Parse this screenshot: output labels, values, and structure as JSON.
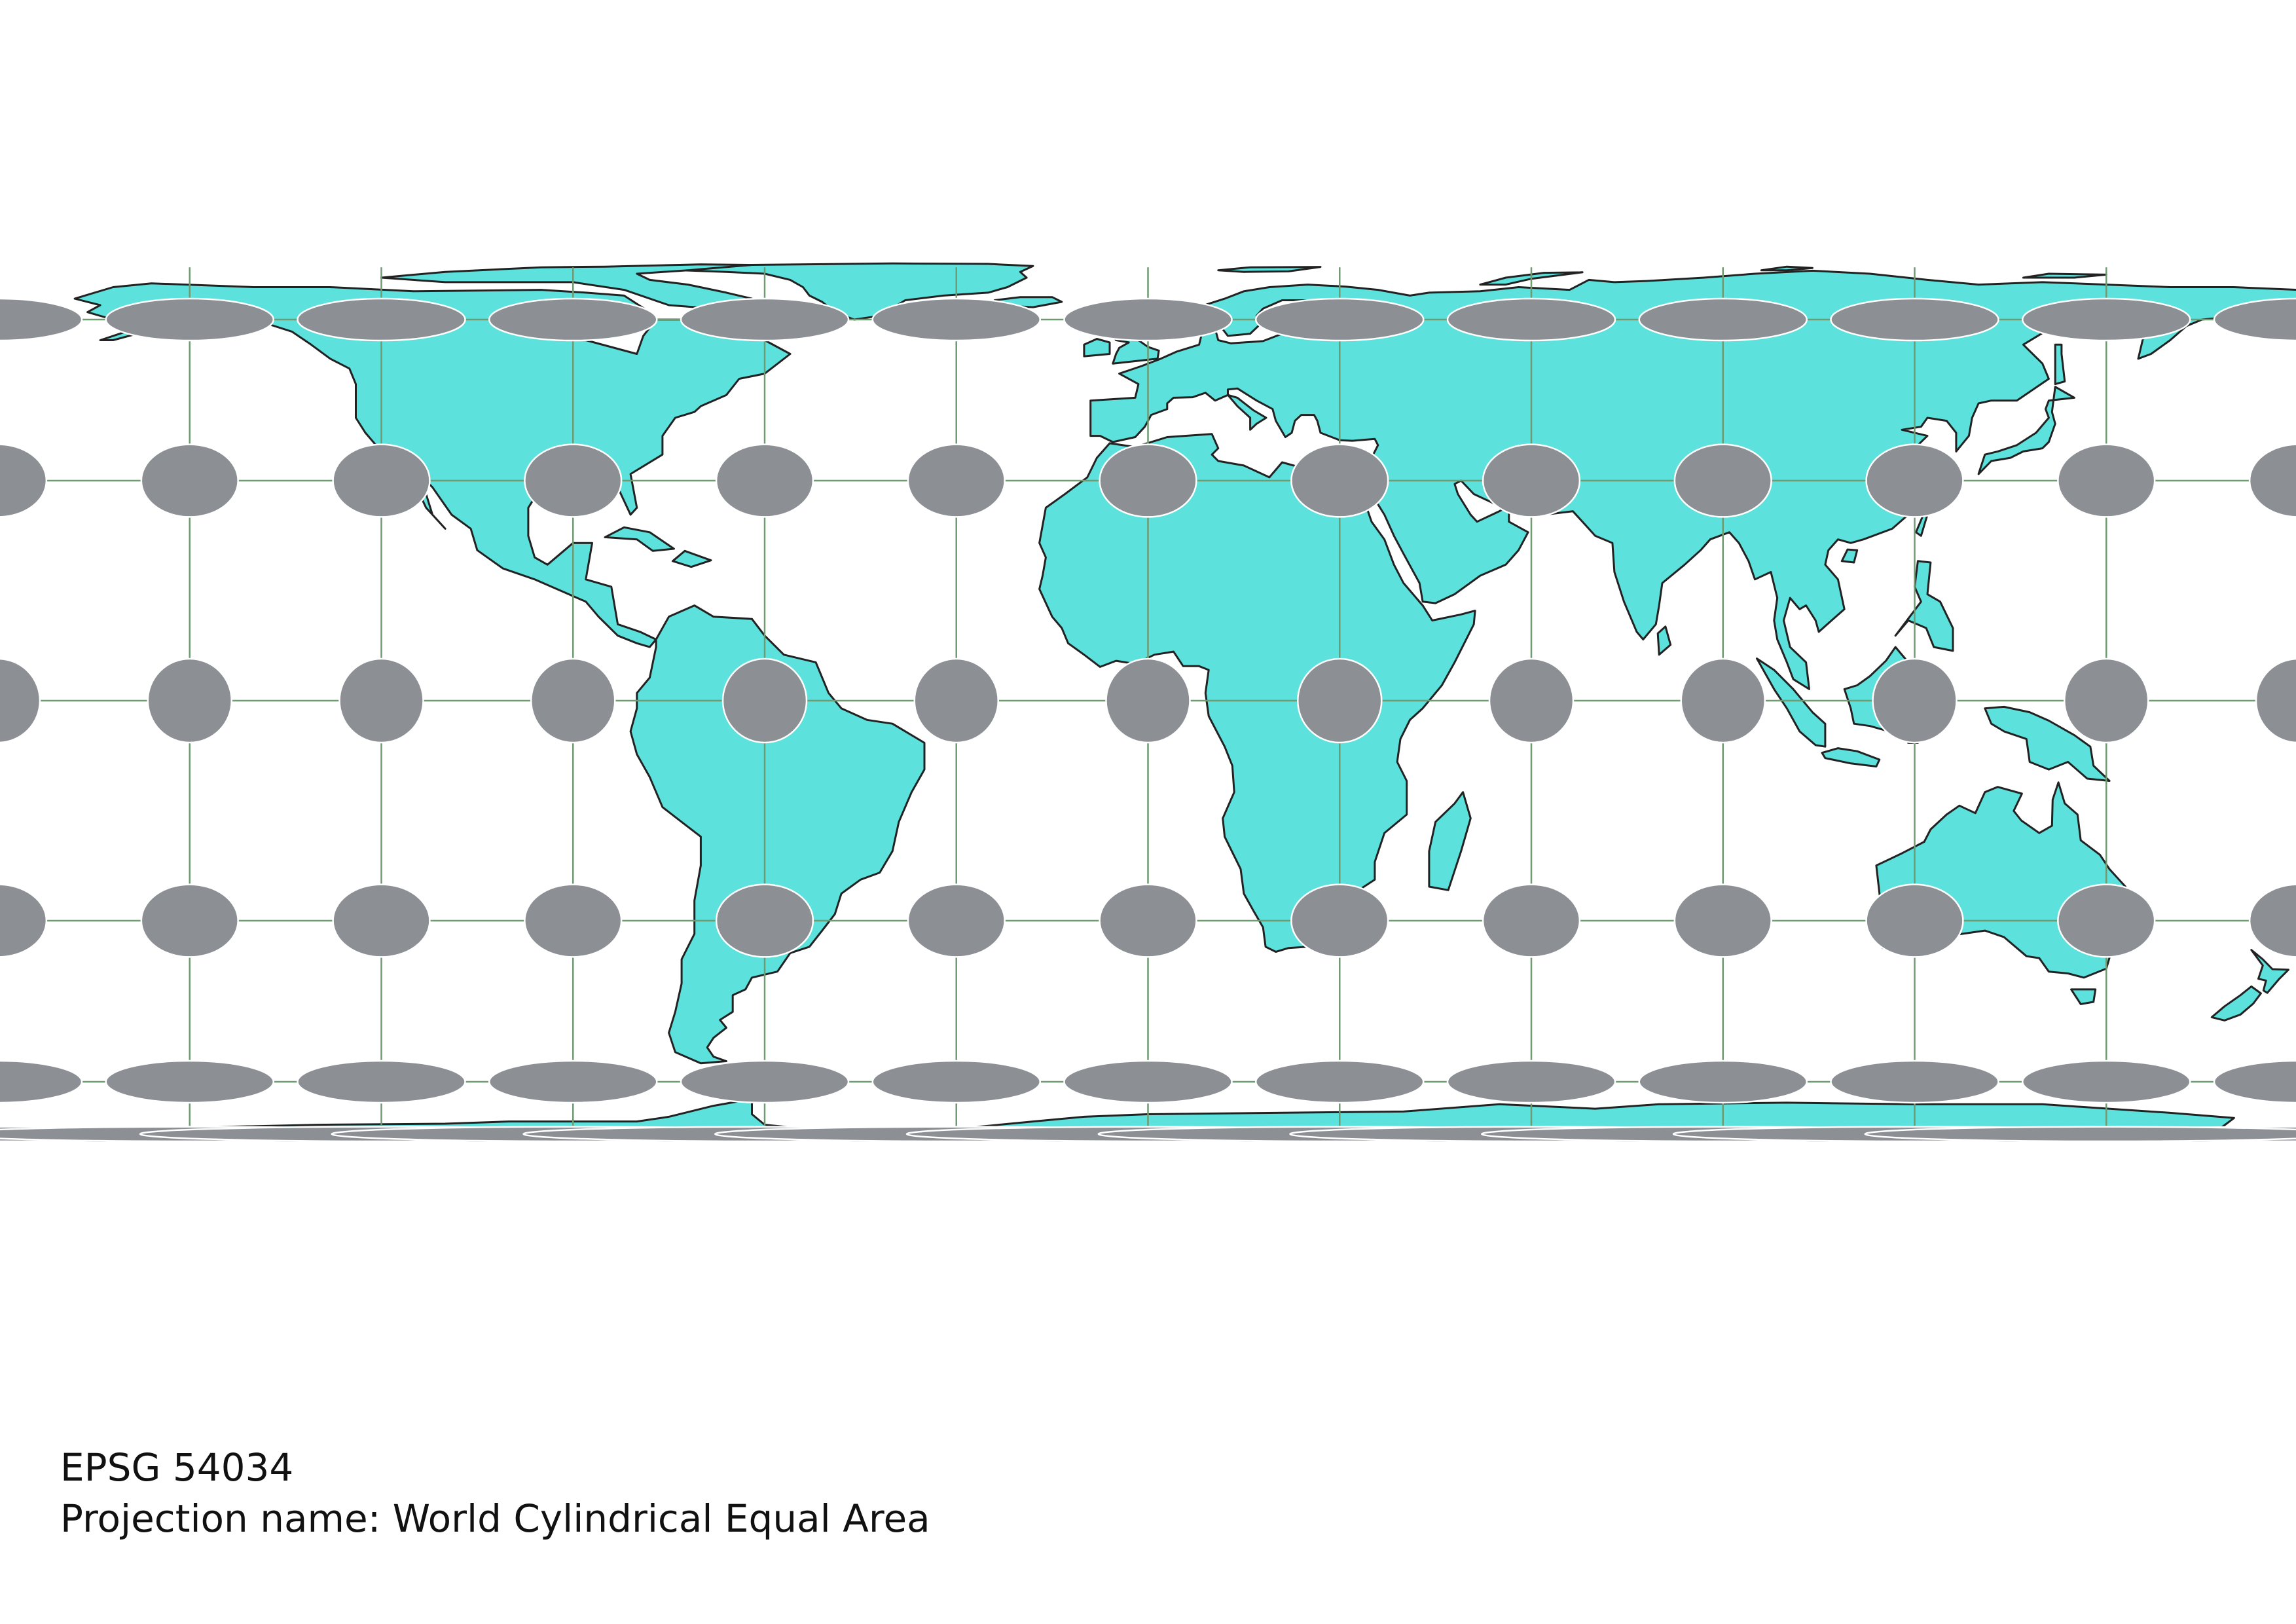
{
  "map": {
    "projection_type": "cylindrical-equal-area",
    "longitude_range": [
      -180,
      180
    ],
    "latitude_range": [
      -90,
      90
    ],
    "graticule_spacing_degrees": 30,
    "graticule_longitudes": [
      -150,
      -120,
      -90,
      -60,
      -30,
      0,
      30,
      60,
      90,
      120,
      150
    ],
    "graticule_latitudes": [
      -60,
      -30,
      0,
      30,
      60
    ],
    "tissot_indicatrices": {
      "longitudes": [
        -180,
        -150,
        -120,
        -90,
        -60,
        -30,
        0,
        30,
        60,
        90,
        120,
        150
      ],
      "latitudes": [
        -80,
        -60,
        -30,
        0,
        30,
        60
      ]
    },
    "colors": {
      "land": "#5ce1dc",
      "coastline": "#222222",
      "graticule": "#6f9a72",
      "indicatrix_fill": "#8c9095",
      "indicatrix_stroke": "#ffffff",
      "ocean": "#ffffff"
    }
  },
  "captions": {
    "epsg": "EPSG 54034",
    "projection": "Projection name: World Cylindrical Equal Area"
  }
}
